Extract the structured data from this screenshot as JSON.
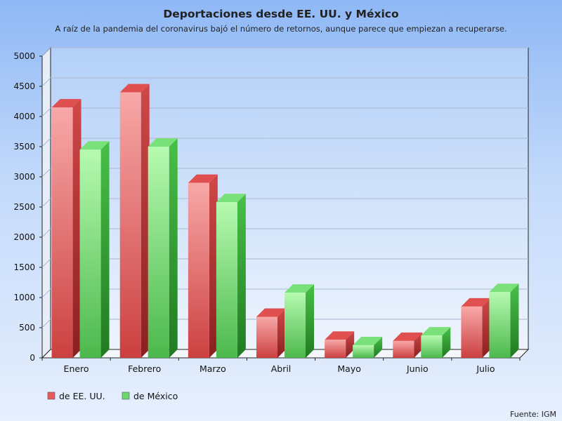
{
  "chart_data": {
    "type": "bar",
    "title": "Deportaciones desde EE. UU. y México",
    "subtitle": "A raíz de la pandemia del coronavirus bajó el número de retornos, aunque parece que empiezan a recuperarse.",
    "categories": [
      "Enero",
      "Febrero",
      "Marzo",
      "Abril",
      "Mayo",
      "Junio",
      "Julio"
    ],
    "series": [
      {
        "name": "de EE. UU.",
        "color": "#e85a5a",
        "values": [
          4150,
          4400,
          2900,
          680,
          300,
          280,
          850
        ]
      },
      {
        "name": "de México",
        "color": "#6ad86a",
        "values": [
          3450,
          3500,
          2580,
          1080,
          210,
          370,
          1090
        ]
      }
    ],
    "ylim": [
      0,
      5000
    ],
    "yticks": [
      0,
      500,
      1000,
      1500,
      2000,
      2500,
      3000,
      3500,
      4000,
      4500,
      5000
    ],
    "grid": true,
    "legend": "bottom-left",
    "source": "Fuente: IGM"
  }
}
